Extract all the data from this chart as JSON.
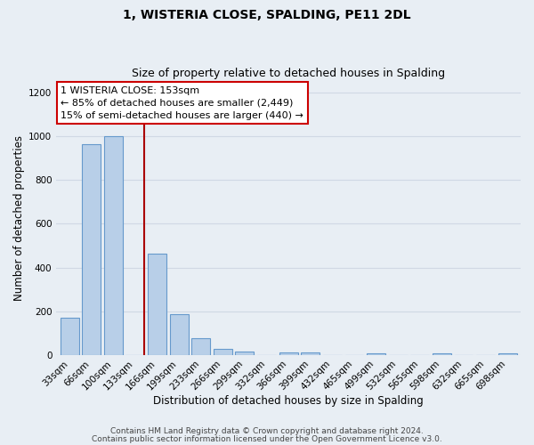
{
  "title": "1, WISTERIA CLOSE, SPALDING, PE11 2DL",
  "subtitle": "Size of property relative to detached houses in Spalding",
  "xlabel": "Distribution of detached houses by size in Spalding",
  "ylabel": "Number of detached properties",
  "bar_labels": [
    "33sqm",
    "66sqm",
    "100sqm",
    "133sqm",
    "166sqm",
    "199sqm",
    "233sqm",
    "266sqm",
    "299sqm",
    "332sqm",
    "366sqm",
    "399sqm",
    "432sqm",
    "465sqm",
    "499sqm",
    "532sqm",
    "565sqm",
    "598sqm",
    "632sqm",
    "665sqm",
    "698sqm"
  ],
  "bar_values": [
    170,
    965,
    1000,
    0,
    465,
    185,
    75,
    25,
    15,
    0,
    10,
    10,
    0,
    0,
    5,
    0,
    0,
    5,
    0,
    0,
    5
  ],
  "bar_color": "#b8cfe8",
  "bar_edge_color": "#6699cc",
  "ylim": [
    0,
    1250
  ],
  "yticks": [
    0,
    200,
    400,
    600,
    800,
    1000,
    1200
  ],
  "property_line_color": "#aa0000",
  "annotation_line1": "1 WISTERIA CLOSE: 153sqm",
  "annotation_line2": "← 85% of detached houses are smaller (2,449)",
  "annotation_line3": "15% of semi-detached houses are larger (440) →",
  "annotation_box_color": "#ffffff",
  "annotation_box_edge_color": "#cc0000",
  "footer_line1": "Contains HM Land Registry data © Crown copyright and database right 2024.",
  "footer_line2": "Contains public sector information licensed under the Open Government Licence v3.0.",
  "background_color": "#e8eef4",
  "plot_bg_color": "#e8eef4",
  "grid_color": "#d0d8e4",
  "title_fontsize": 10,
  "subtitle_fontsize": 9,
  "axis_label_fontsize": 8.5,
  "tick_fontsize": 7.5,
  "annotation_fontsize": 8,
  "footer_fontsize": 6.5
}
